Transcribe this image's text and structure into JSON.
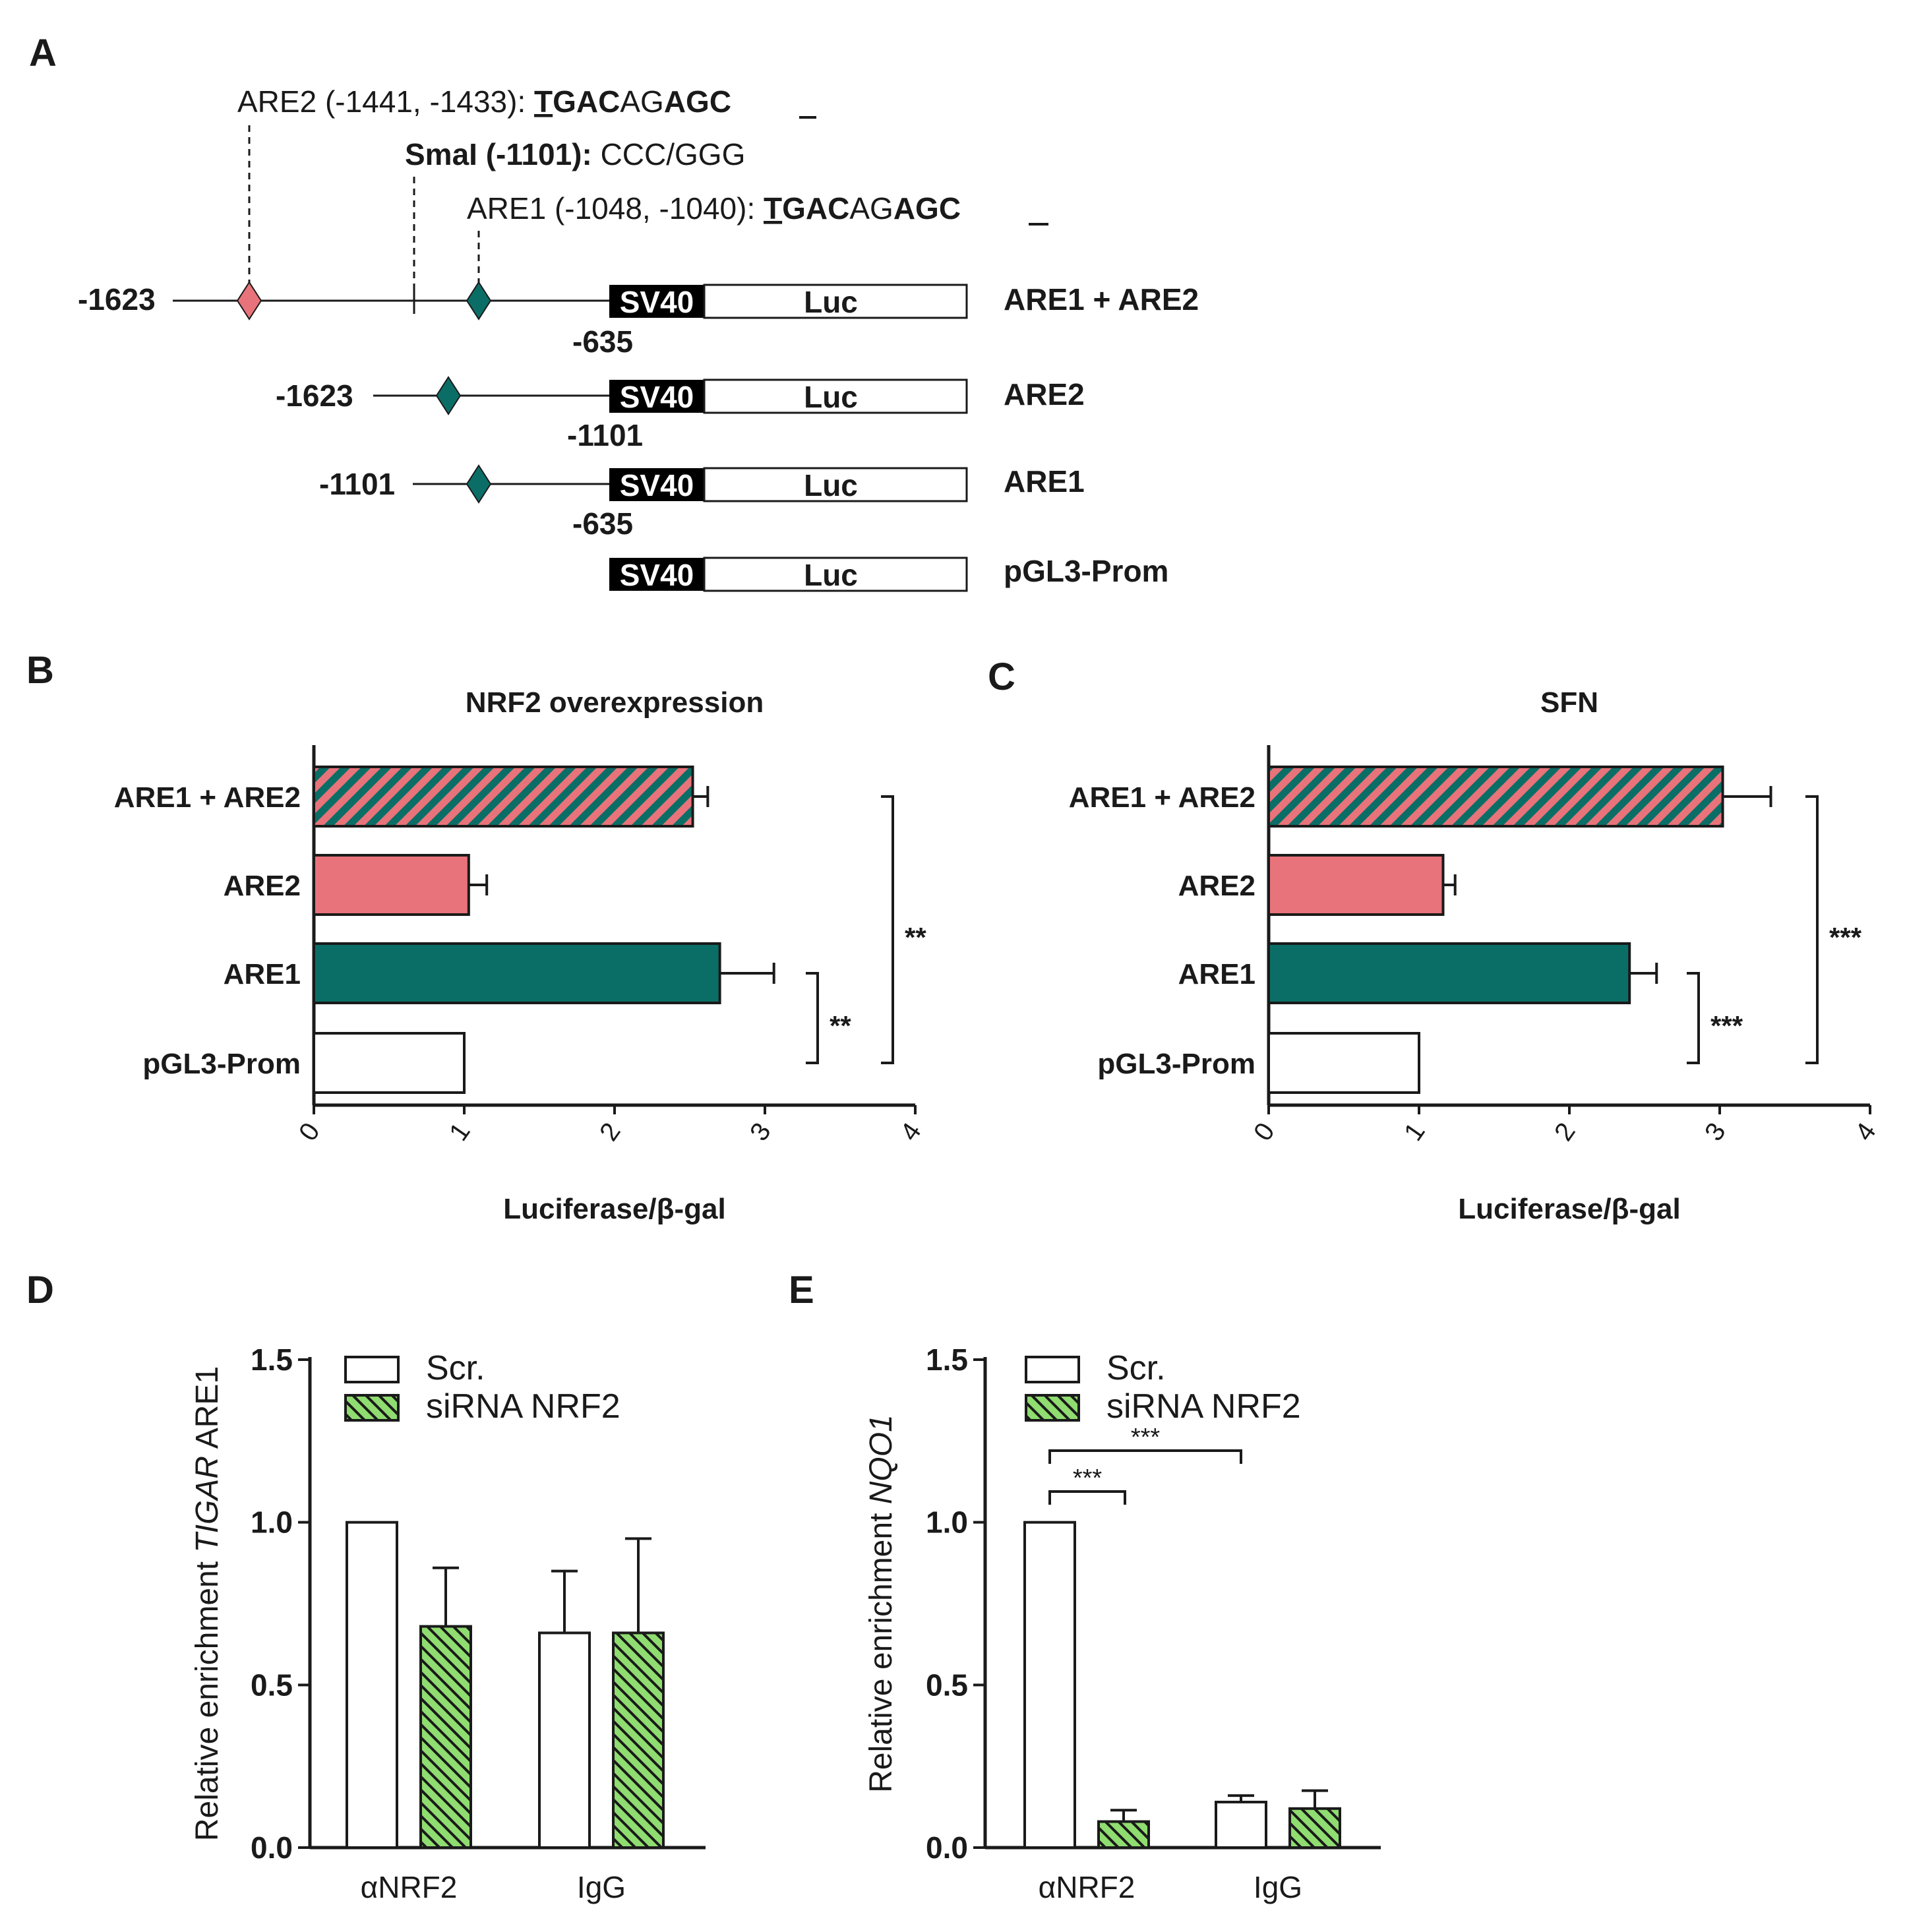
{
  "colors": {
    "pink": "#e8737a",
    "teal": "#0b6e66",
    "green": "#8fdc70",
    "dark": "#1a1a1a"
  },
  "panelA": {
    "label": "A",
    "sites": [
      {
        "id": "are2",
        "prefix": "ARE2 (-1441, -1433): ",
        "seq": [
          "T",
          "GAC",
          "AG",
          "AGC"
        ],
        "seq_bold": [
          true,
          true,
          false,
          true
        ]
      },
      {
        "id": "smai",
        "prefix": "SmaI (-1101): ",
        "seq_text": "CCC/GGG"
      },
      {
        "id": "are1",
        "prefix": "ARE1 (-1048, -1040): ",
        "seq": [
          "T",
          "GAC",
          "AG",
          "AGC"
        ],
        "seq_bold": [
          true,
          true,
          false,
          true
        ]
      }
    ],
    "constructs": [
      {
        "name": "ARE1 + ARE2",
        "start": "-1623",
        "end": "-635"
      },
      {
        "name": "ARE2",
        "start": "-1623",
        "end": "-1101"
      },
      {
        "name": "ARE1",
        "start": "-1101",
        "end": "-635"
      },
      {
        "name": "pGL3-Prom",
        "start": "",
        "end": ""
      }
    ],
    "promoter_label": "SV40",
    "reporter_label": "Luc"
  },
  "chart_data": [
    {
      "panel": "B",
      "type": "bar",
      "orientation": "horizontal",
      "title": "NRF2 overexpression",
      "xlabel": "Luciferase/β-gal",
      "xlim": [
        0,
        4
      ],
      "ticks": [
        "0",
        "1",
        "2",
        "3",
        "4"
      ],
      "categories": [
        "ARE1 + ARE2",
        "ARE2",
        "ARE1",
        "pGL3-Prom"
      ],
      "values": [
        2.52,
        1.03,
        2.7,
        1.0
      ],
      "errors": [
        0.1,
        0.12,
        0.36,
        0.0
      ],
      "significance": [
        {
          "from": "ARE1",
          "to": "pGL3-Prom",
          "label": "**"
        },
        {
          "from": "ARE1 + ARE2",
          "to": "pGL3-Prom",
          "label": "**"
        }
      ]
    },
    {
      "panel": "C",
      "type": "bar",
      "orientation": "horizontal",
      "title": "SFN",
      "xlabel": "Luciferase/β-gal",
      "xlim": [
        0,
        4
      ],
      "ticks": [
        "0",
        "1",
        "2",
        "3",
        "4"
      ],
      "categories": [
        "ARE1 + ARE2",
        "ARE2",
        "ARE1",
        "pGL3-Prom"
      ],
      "values": [
        3.02,
        1.16,
        2.4,
        1.0
      ],
      "errors": [
        0.32,
        0.08,
        0.18,
        0.0
      ],
      "significance": [
        {
          "from": "ARE1",
          "to": "pGL3-Prom",
          "label": "***"
        },
        {
          "from": "ARE1 + ARE2",
          "to": "pGL3-Prom",
          "label": "***"
        }
      ]
    },
    {
      "panel": "D",
      "type": "bar",
      "ylabel_prefix": "Relative enrichment ",
      "ylabel_italic": "TIGAR",
      "ylabel_suffix": " ARE1",
      "ylim": [
        0,
        1.5
      ],
      "yticks": [
        "0.0",
        "0.5",
        "1.0",
        "1.5"
      ],
      "categories": [
        "αNRF2",
        "IgG"
      ],
      "series": [
        {
          "name": "Scr.",
          "values": [
            1.0,
            0.66
          ],
          "errors": [
            0.0,
            0.19
          ]
        },
        {
          "name": "siRNA NRF2",
          "values": [
            0.68,
            0.66
          ],
          "errors": [
            0.18,
            0.29
          ]
        }
      ],
      "significance": []
    },
    {
      "panel": "E",
      "type": "bar",
      "ylabel_prefix": "Relative enrichment ",
      "ylabel_italic": "NQO1",
      "ylabel_suffix": "",
      "ylim": [
        0,
        1.5
      ],
      "yticks": [
        "0.0",
        "0.5",
        "1.0",
        "1.5"
      ],
      "categories": [
        "αNRF2",
        "IgG"
      ],
      "series": [
        {
          "name": "Scr.",
          "values": [
            1.0,
            0.14
          ],
          "errors": [
            0.0,
            0.02
          ]
        },
        {
          "name": "siRNA NRF2",
          "values": [
            0.08,
            0.12
          ],
          "errors": [
            0.035,
            0.055
          ]
        }
      ],
      "significance": [
        {
          "label": "***",
          "between": "αNRF2 Scr. vs αNRF2 siRNA NRF2"
        },
        {
          "label": "***",
          "between": "αNRF2 Scr. vs IgG Scr."
        }
      ]
    }
  ]
}
